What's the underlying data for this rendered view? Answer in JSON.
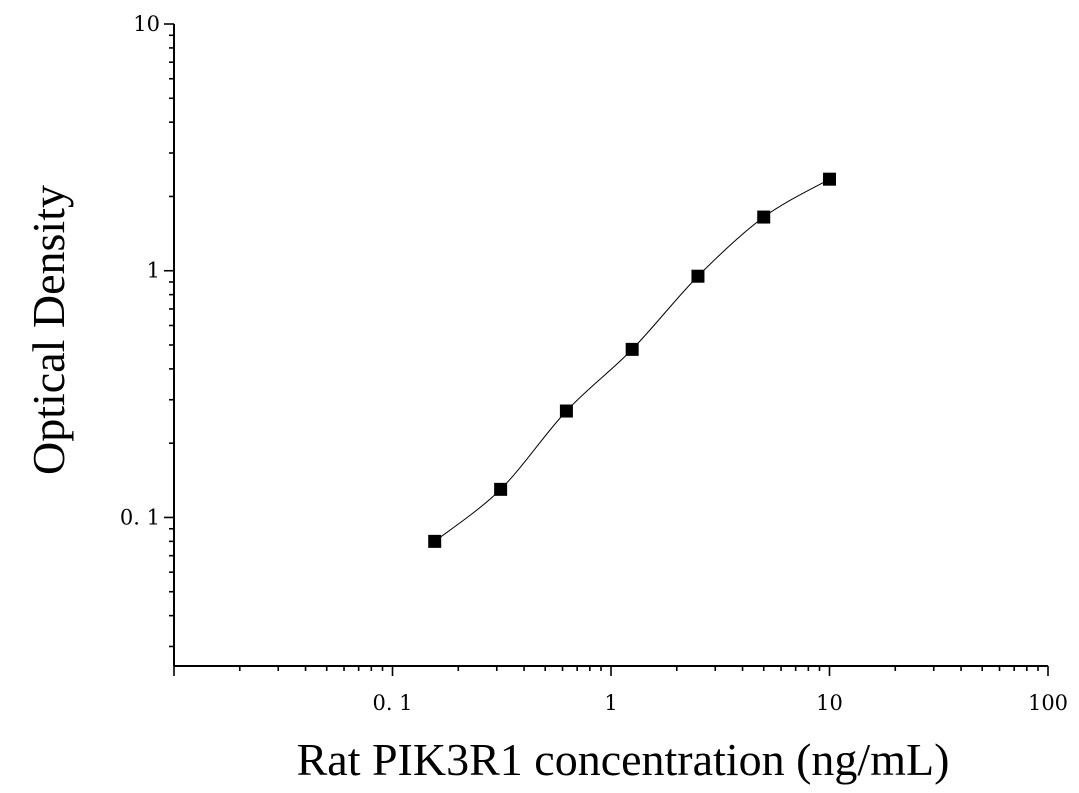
{
  "chart_data": {
    "type": "scatter",
    "title": "",
    "xlabel": "Rat PIK3R1 concentration (ng/mL)",
    "ylabel": "Optical Density",
    "x_scale": "log",
    "y_scale": "log",
    "xlim": [
      0.01,
      100
    ],
    "ylim": [
      0.025,
      10
    ],
    "x_ticks": [
      {
        "value": 0.1,
        "label": "0. 1"
      },
      {
        "value": 1,
        "label": "1"
      },
      {
        "value": 10,
        "label": "10"
      },
      {
        "value": 100,
        "label": "100"
      }
    ],
    "y_ticks": [
      {
        "value": 0.1,
        "label": "0. 1"
      },
      {
        "value": 1,
        "label": "1"
      },
      {
        "value": 10,
        "label": "10"
      }
    ],
    "grid": false,
    "series": [
      {
        "marker": "square",
        "color": "#000000",
        "x": [
          0.156,
          0.3125,
          0.625,
          1.25,
          2.5,
          5,
          10
        ],
        "y": [
          0.08,
          0.13,
          0.27,
          0.48,
          0.95,
          1.65,
          2.35
        ]
      }
    ],
    "fit_curve": {
      "style": "smooth",
      "color": "#000000"
    }
  }
}
